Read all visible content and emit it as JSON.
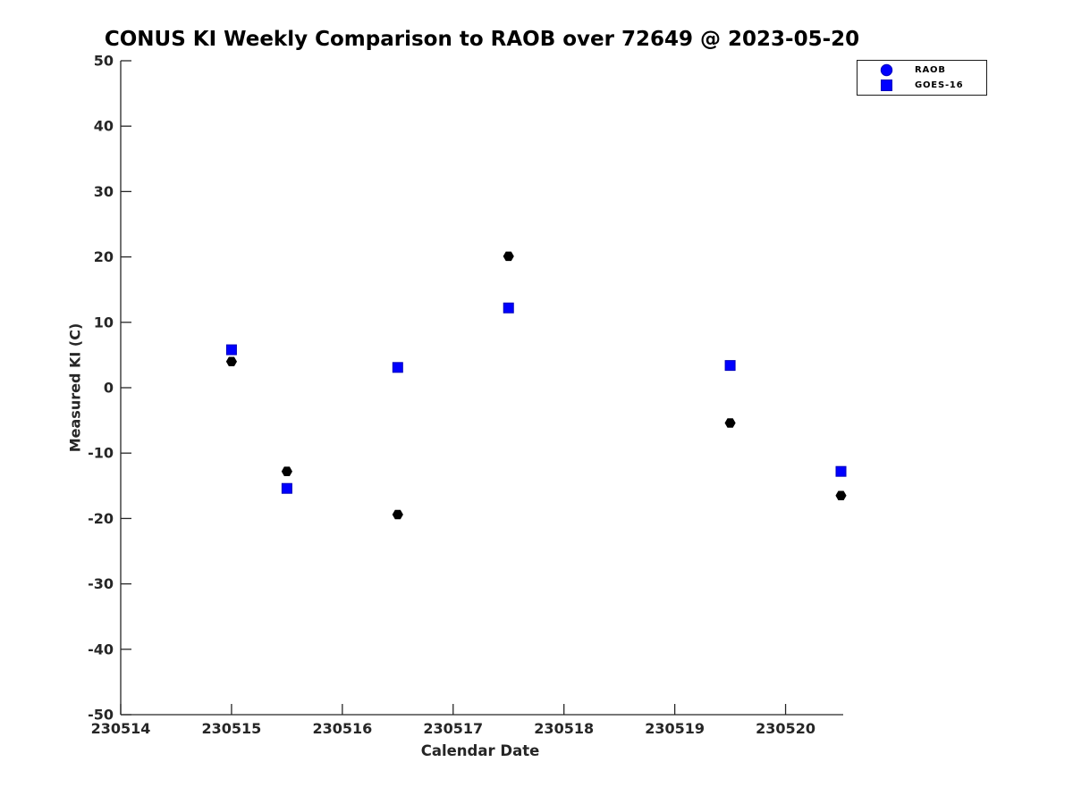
{
  "chart_data": {
    "type": "scatter",
    "title": "CONUS KI Weekly Comparison to RAOB over 72649 @ 2023-05-20",
    "xlabel": "Calendar Date",
    "ylabel": "Measured KI (C)",
    "xlim": [
      230514,
      230520.52
    ],
    "ylim": [
      -50,
      50
    ],
    "xticks": [
      230514,
      230515,
      230516,
      230517,
      230518,
      230519,
      230520
    ],
    "yticks": [
      50,
      40,
      30,
      20,
      10,
      0,
      -10,
      -20,
      -30,
      -40,
      -50
    ],
    "grid": false,
    "legend": {
      "position": "top-right",
      "entries": [
        {
          "label": "RAOB",
          "marker": "circle",
          "color": "#0000ff"
        },
        {
          "label": "GOES-16",
          "marker": "square",
          "color": "#0000ff"
        }
      ]
    },
    "series": [
      {
        "name": "RAOB",
        "marker": "hexagon",
        "color": "#000000",
        "edge_color": "#000000",
        "points": [
          [
            230515.0,
            4.0
          ],
          [
            230515.5,
            -12.8
          ],
          [
            230516.5,
            -19.4
          ],
          [
            230517.5,
            20.1
          ],
          [
            230519.5,
            -5.4
          ],
          [
            230520.5,
            -16.5
          ]
        ]
      },
      {
        "name": "GOES-16",
        "marker": "square",
        "color": "#0000ff",
        "edge_color": "#0000bb",
        "points": [
          [
            230515.0,
            5.8
          ],
          [
            230515.5,
            -15.4
          ],
          [
            230516.5,
            3.1
          ],
          [
            230517.5,
            12.2
          ],
          [
            230519.5,
            3.4
          ],
          [
            230520.5,
            -12.8
          ]
        ]
      }
    ],
    "colors": {
      "axis": "#262626",
      "title_text": "#000000",
      "raob_plot_marker": "#000000",
      "legend_marker_blue": "#0000ff"
    }
  }
}
